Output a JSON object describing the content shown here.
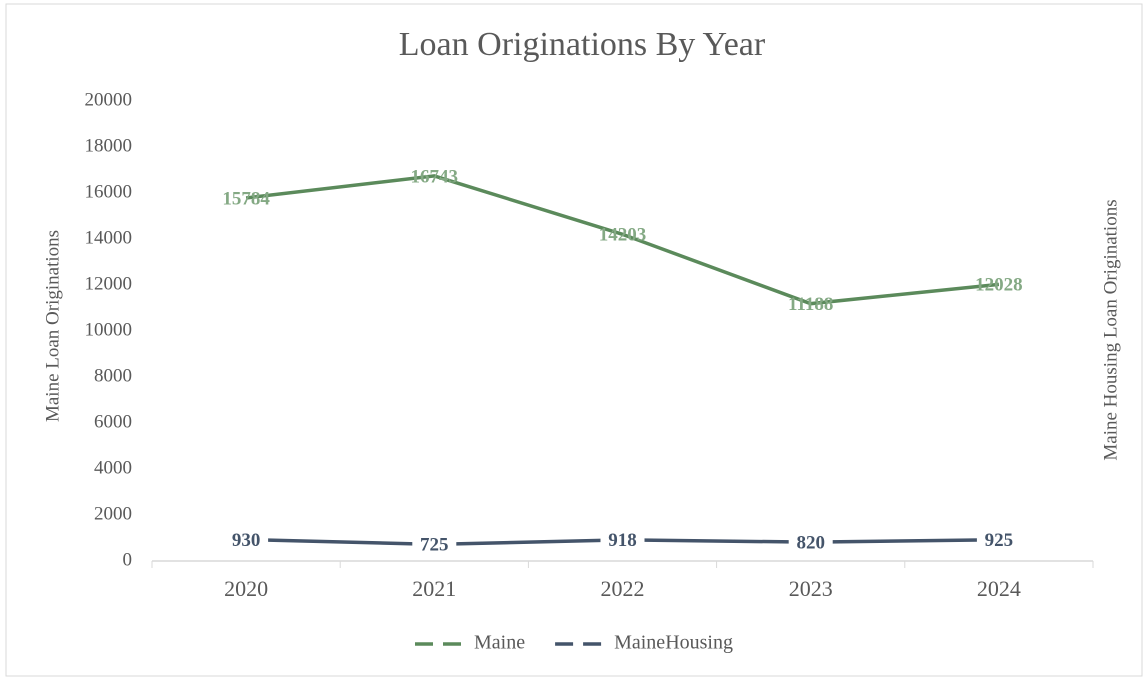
{
  "chart_data": {
    "type": "line",
    "title": "Loan Originations By Year",
    "y_label": "Maine Loan Originations",
    "y2_label": "Maine Housing Loan Originations",
    "categories": [
      "2020",
      "2021",
      "2022",
      "2023",
      "2024"
    ],
    "series": [
      {
        "name": "Maine",
        "color": "#5b8a5b",
        "label_color": "#84a984",
        "values": [
          15784,
          16743,
          14203,
          11188,
          12028
        ]
      },
      {
        "name": "MaineHousing",
        "color": "#44546a",
        "label_color": "#44546a",
        "values": [
          930,
          725,
          918,
          820,
          925
        ]
      }
    ],
    "ylim": [
      0,
      20000
    ],
    "yticks": [
      0,
      2000,
      4000,
      6000,
      8000,
      10000,
      12000,
      14000,
      16000,
      18000,
      20000
    ],
    "legend": "bottom"
  }
}
